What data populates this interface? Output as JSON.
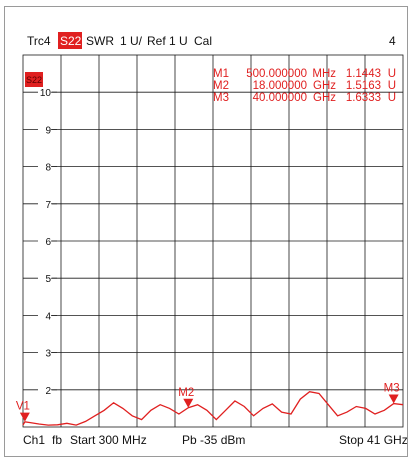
{
  "header": {
    "trace": "Trc4",
    "param": "S22",
    "format": "SWR",
    "scale": "1 U/",
    "ref": "Ref 1 U",
    "cal": "Cal",
    "channel_num": "4"
  },
  "trace_tag": "S22",
  "markers": [
    {
      "name": "M1",
      "freq": "500.000000",
      "unit": "MHz",
      "value": "1.1443",
      "vunit": "U"
    },
    {
      "name": "M2",
      "freq": "18.000000",
      "unit": "GHz",
      "value": "1.5163",
      "vunit": "U"
    },
    {
      "name": "M3",
      "freq": "40.000000",
      "unit": "GHz",
      "value": "1.6333",
      "vunit": "U"
    }
  ],
  "footer": {
    "channel": "Ch1",
    "fb": "fb",
    "start": "Start 300 MHz",
    "pb": "Pb -35 dBm",
    "stop": "Stop 41 GHz"
  },
  "colors": {
    "trace": "#e02020",
    "marker": "#e02020",
    "grid": "#1a1a1a",
    "text": "#111111"
  },
  "chart_data": {
    "type": "line",
    "title": "",
    "xlabel": "",
    "ylabel": "",
    "xlim": [
      0.3,
      41
    ],
    "ylim": [
      1,
      11
    ],
    "y_ticks": [
      2,
      3,
      4,
      5,
      6,
      7,
      8,
      9,
      10
    ],
    "grid": true,
    "series": [
      {
        "x": [
          0.3,
          0.5,
          1,
          2,
          3,
          4,
          5,
          6,
          7,
          8,
          9,
          10,
          11,
          12,
          13,
          14,
          15,
          16,
          17,
          18,
          19,
          20,
          21,
          22,
          23,
          24,
          25,
          26,
          27,
          28,
          29,
          30,
          31,
          32,
          33,
          34,
          35,
          36,
          37,
          38,
          39,
          40,
          41
        ],
        "y": [
          1.05,
          1.14,
          1.12,
          1.08,
          1.05,
          1.06,
          1.1,
          1.05,
          1.15,
          1.3,
          1.45,
          1.65,
          1.5,
          1.3,
          1.2,
          1.45,
          1.6,
          1.5,
          1.35,
          1.52,
          1.6,
          1.45,
          1.2,
          1.45,
          1.7,
          1.55,
          1.3,
          1.5,
          1.62,
          1.4,
          1.35,
          1.75,
          1.95,
          1.9,
          1.6,
          1.3,
          1.4,
          1.55,
          1.5,
          1.35,
          1.45,
          1.63,
          1.6
        ]
      }
    ],
    "markers": [
      {
        "name": "M1",
        "x": 0.5,
        "y": 1.1443
      },
      {
        "name": "M2",
        "x": 18,
        "y": 1.5163
      },
      {
        "name": "M3",
        "x": 40,
        "y": 1.6333
      }
    ]
  }
}
